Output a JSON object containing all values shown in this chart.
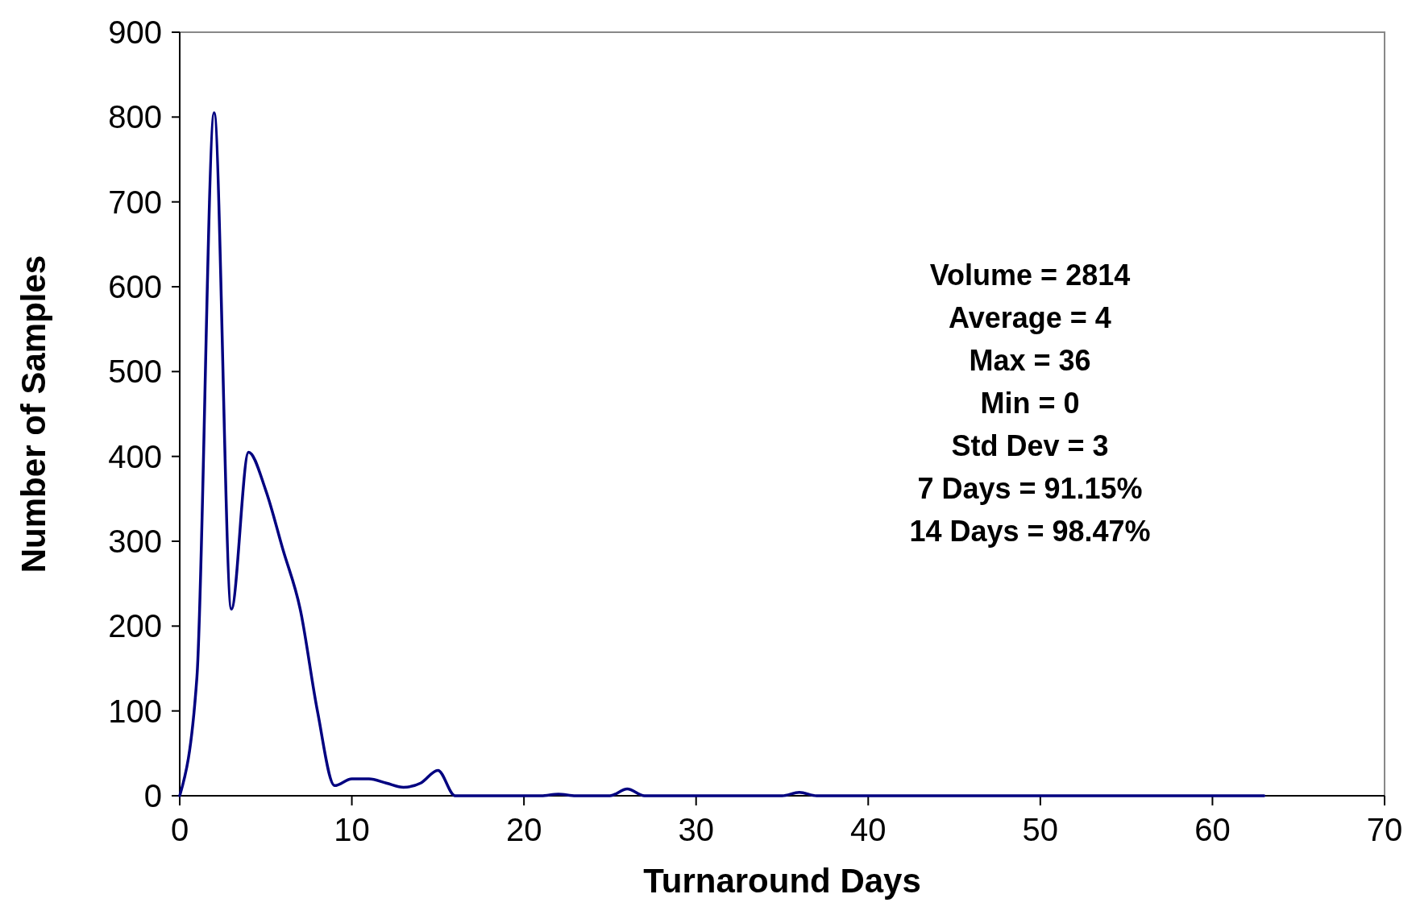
{
  "chart_data": {
    "type": "line",
    "xlabel": "Turnaround Days",
    "ylabel": "Number of Samples",
    "xlim": [
      0,
      70
    ],
    "xticks": [
      0,
      10,
      20,
      30,
      40,
      50,
      60,
      70
    ],
    "ylim": [
      0,
      900
    ],
    "yticks": [
      0,
      100,
      200,
      300,
      400,
      500,
      600,
      700,
      800,
      900
    ],
    "grid": false,
    "marker": "none",
    "line_style": "solid",
    "x": [
      0,
      1,
      2,
      3,
      4,
      5,
      6,
      7,
      8,
      9,
      10,
      11,
      12,
      13,
      14,
      15,
      16,
      17,
      18,
      19,
      20,
      21,
      22,
      23,
      24,
      25,
      26,
      27,
      28,
      29,
      30,
      31,
      32,
      33,
      34,
      35,
      36,
      37,
      38,
      39,
      40,
      41,
      42,
      43,
      44,
      45,
      46,
      47,
      48,
      49,
      50,
      51,
      52,
      53,
      54,
      55,
      56,
      57,
      58,
      59,
      60,
      61,
      62,
      63
    ],
    "series": [
      {
        "color": "#000080",
        "values": [
          0,
          140,
          805,
          220,
          405,
          360,
          290,
          220,
          100,
          12,
          20,
          20,
          15,
          10,
          15,
          30,
          0,
          0,
          0,
          0,
          0,
          0,
          2,
          0,
          0,
          0,
          8,
          0,
          0,
          0,
          0,
          0,
          0,
          0,
          0,
          0,
          4,
          0,
          0,
          0,
          0,
          0,
          0,
          0,
          0,
          0,
          0,
          0,
          0,
          0,
          0,
          0,
          0,
          0,
          0,
          0,
          0,
          0,
          0,
          0,
          0,
          0,
          0,
          0
        ]
      }
    ],
    "annotations": [
      "Volume = 2814",
      "Average = 4",
      "Max = 36",
      "Min = 0",
      "Std Dev = 3",
      "7 Days = 91.15%",
      "14 Days = 98.47%"
    ]
  }
}
